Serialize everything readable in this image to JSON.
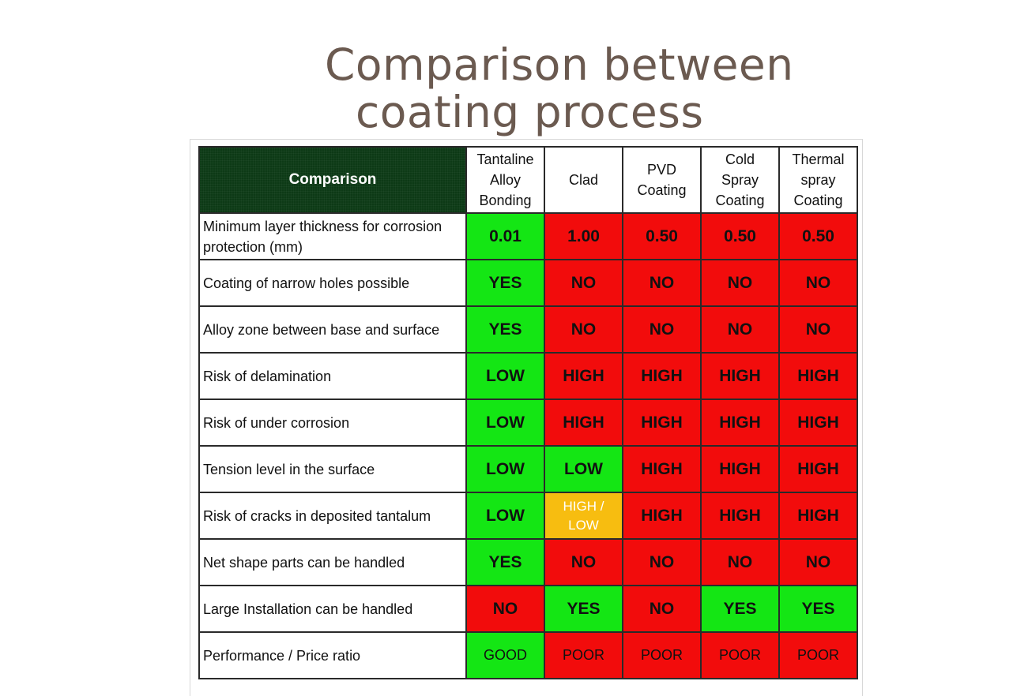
{
  "title": {
    "line1": "Comparison between",
    "line2": "coating process"
  },
  "colors": {
    "good": "#14e614",
    "bad": "#f20c0c",
    "mixed": "#f7bd10",
    "header_bg": "#0d3a16"
  },
  "table": {
    "corner_label": "Comparison",
    "columns": [
      {
        "lines": [
          "Tantaline",
          "Alloy",
          "Bonding"
        ]
      },
      {
        "lines": [
          "Clad"
        ]
      },
      {
        "lines": [
          "PVD",
          "Coating"
        ]
      },
      {
        "lines": [
          "Cold",
          "Spray",
          "Coating"
        ]
      },
      {
        "lines": [
          "Thermal",
          "spray",
          "Coating"
        ]
      }
    ],
    "rows": [
      {
        "label": "Minimum layer thickness for corrosion protection (mm)",
        "cells": [
          {
            "v": "0.01",
            "c": "green"
          },
          {
            "v": "1.00",
            "c": "red"
          },
          {
            "v": "0.50",
            "c": "red"
          },
          {
            "v": "0.50",
            "c": "red"
          },
          {
            "v": "0.50",
            "c": "red"
          }
        ]
      },
      {
        "label": "Coating of narrow holes possible",
        "cells": [
          {
            "v": "YES",
            "c": "green"
          },
          {
            "v": "NO",
            "c": "red"
          },
          {
            "v": "NO",
            "c": "red"
          },
          {
            "v": "NO",
            "c": "red"
          },
          {
            "v": "NO",
            "c": "red"
          }
        ]
      },
      {
        "label": "Alloy zone between base and surface",
        "cells": [
          {
            "v": "YES",
            "c": "green"
          },
          {
            "v": "NO",
            "c": "red"
          },
          {
            "v": "NO",
            "c": "red"
          },
          {
            "v": "NO",
            "c": "red"
          },
          {
            "v": "NO",
            "c": "red"
          }
        ]
      },
      {
        "label": "Risk of delamination",
        "cells": [
          {
            "v": "LOW",
            "c": "green"
          },
          {
            "v": "HIGH",
            "c": "red"
          },
          {
            "v": "HIGH",
            "c": "red"
          },
          {
            "v": "HIGH",
            "c": "red"
          },
          {
            "v": "HIGH",
            "c": "red"
          }
        ]
      },
      {
        "label": "Risk of under corrosion",
        "cells": [
          {
            "v": "LOW",
            "c": "green"
          },
          {
            "v": "HIGH",
            "c": "red"
          },
          {
            "v": "HIGH",
            "c": "red"
          },
          {
            "v": "HIGH",
            "c": "red"
          },
          {
            "v": "HIGH",
            "c": "red"
          }
        ]
      },
      {
        "label": "Tension level in the surface",
        "cells": [
          {
            "v": "LOW",
            "c": "green"
          },
          {
            "v": "LOW",
            "c": "green"
          },
          {
            "v": "HIGH",
            "c": "red"
          },
          {
            "v": "HIGH",
            "c": "red"
          },
          {
            "v": "HIGH",
            "c": "red"
          }
        ]
      },
      {
        "label": "Risk of cracks in deposited tantalum",
        "cells": [
          {
            "v": "LOW",
            "c": "green"
          },
          {
            "v": "HIGH / LOW",
            "c": "amber",
            "t": "tiny"
          },
          {
            "v": "HIGH",
            "c": "red"
          },
          {
            "v": "HIGH",
            "c": "red"
          },
          {
            "v": "HIGH",
            "c": "red"
          }
        ]
      },
      {
        "label": "Net shape parts can be handled",
        "cells": [
          {
            "v": "YES",
            "c": "green"
          },
          {
            "v": "NO",
            "c": "red"
          },
          {
            "v": "NO",
            "c": "red"
          },
          {
            "v": "NO",
            "c": "red"
          },
          {
            "v": "NO",
            "c": "red"
          }
        ]
      },
      {
        "label": "Large Installation can be handled",
        "cells": [
          {
            "v": "NO",
            "c": "red"
          },
          {
            "v": "YES",
            "c": "green"
          },
          {
            "v": "NO",
            "c": "red"
          },
          {
            "v": "YES",
            "c": "green"
          },
          {
            "v": "YES",
            "c": "green"
          }
        ]
      },
      {
        "label": "Performance / Price ratio",
        "cells": [
          {
            "v": "GOOD",
            "c": "green",
            "t": "small"
          },
          {
            "v": "POOR",
            "c": "red",
            "t": "small"
          },
          {
            "v": "POOR",
            "c": "red",
            "t": "small"
          },
          {
            "v": "POOR",
            "c": "red",
            "t": "small"
          },
          {
            "v": "POOR",
            "c": "red",
            "t": "small"
          }
        ]
      }
    ]
  }
}
